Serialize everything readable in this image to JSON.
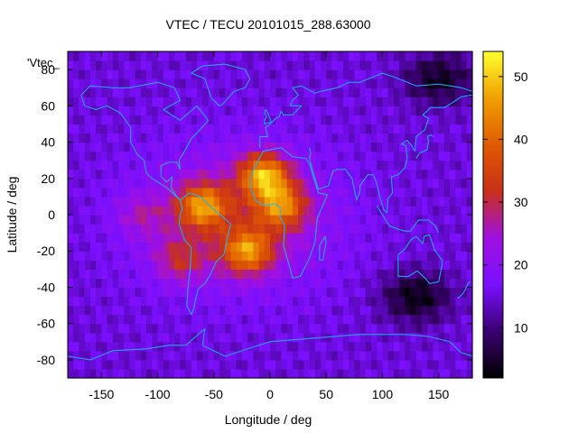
{
  "chart_data": {
    "type": "heatmap",
    "title": "VTEC / TECU 20101015_288.63000",
    "xlabel": "Longitude / deg",
    "ylabel": "Latitude / deg",
    "key_label": "'Vtec_",
    "xlim": [
      -180,
      180
    ],
    "ylim": [
      -90,
      90
    ],
    "x_ticks": [
      -150,
      -100,
      -50,
      0,
      50,
      100,
      150
    ],
    "y_ticks": [
      -80,
      -60,
      -40,
      -20,
      0,
      20,
      40,
      60,
      80
    ],
    "grid": false,
    "colorbar": {
      "range": [
        2,
        54
      ],
      "ticks": [
        10,
        20,
        30,
        40,
        50
      ],
      "palette": [
        "#000000",
        "#3a0070",
        "#7a10ff",
        "#a010e0",
        "#c8301a",
        "#e05a00",
        "#f0a000",
        "#ffff30"
      ]
    },
    "grid_resolution_deg": 5,
    "tec_model": {
      "background_tecu": 15,
      "anomaly_peaks": [
        {
          "lon": -60,
          "lat": 5,
          "peak_tecu": 46
        },
        {
          "lon": -20,
          "lat": -20,
          "peak_tecu": 46
        },
        {
          "lon": 10,
          "lat": 5,
          "peak_tecu": 44
        },
        {
          "lon": -5,
          "lat": 22,
          "peak_tecu": 50
        },
        {
          "lon": -80,
          "lat": -25,
          "peak_tecu": 34
        },
        {
          "lon": -115,
          "lat": 0,
          "peak_tecu": 30
        }
      ],
      "night_minima": [
        {
          "lon": 130,
          "lat": -45,
          "min_tecu": 3
        },
        {
          "lon": 150,
          "lat": 75,
          "min_tecu": 4
        }
      ]
    },
    "coastline_color": "#1fb0ff"
  }
}
